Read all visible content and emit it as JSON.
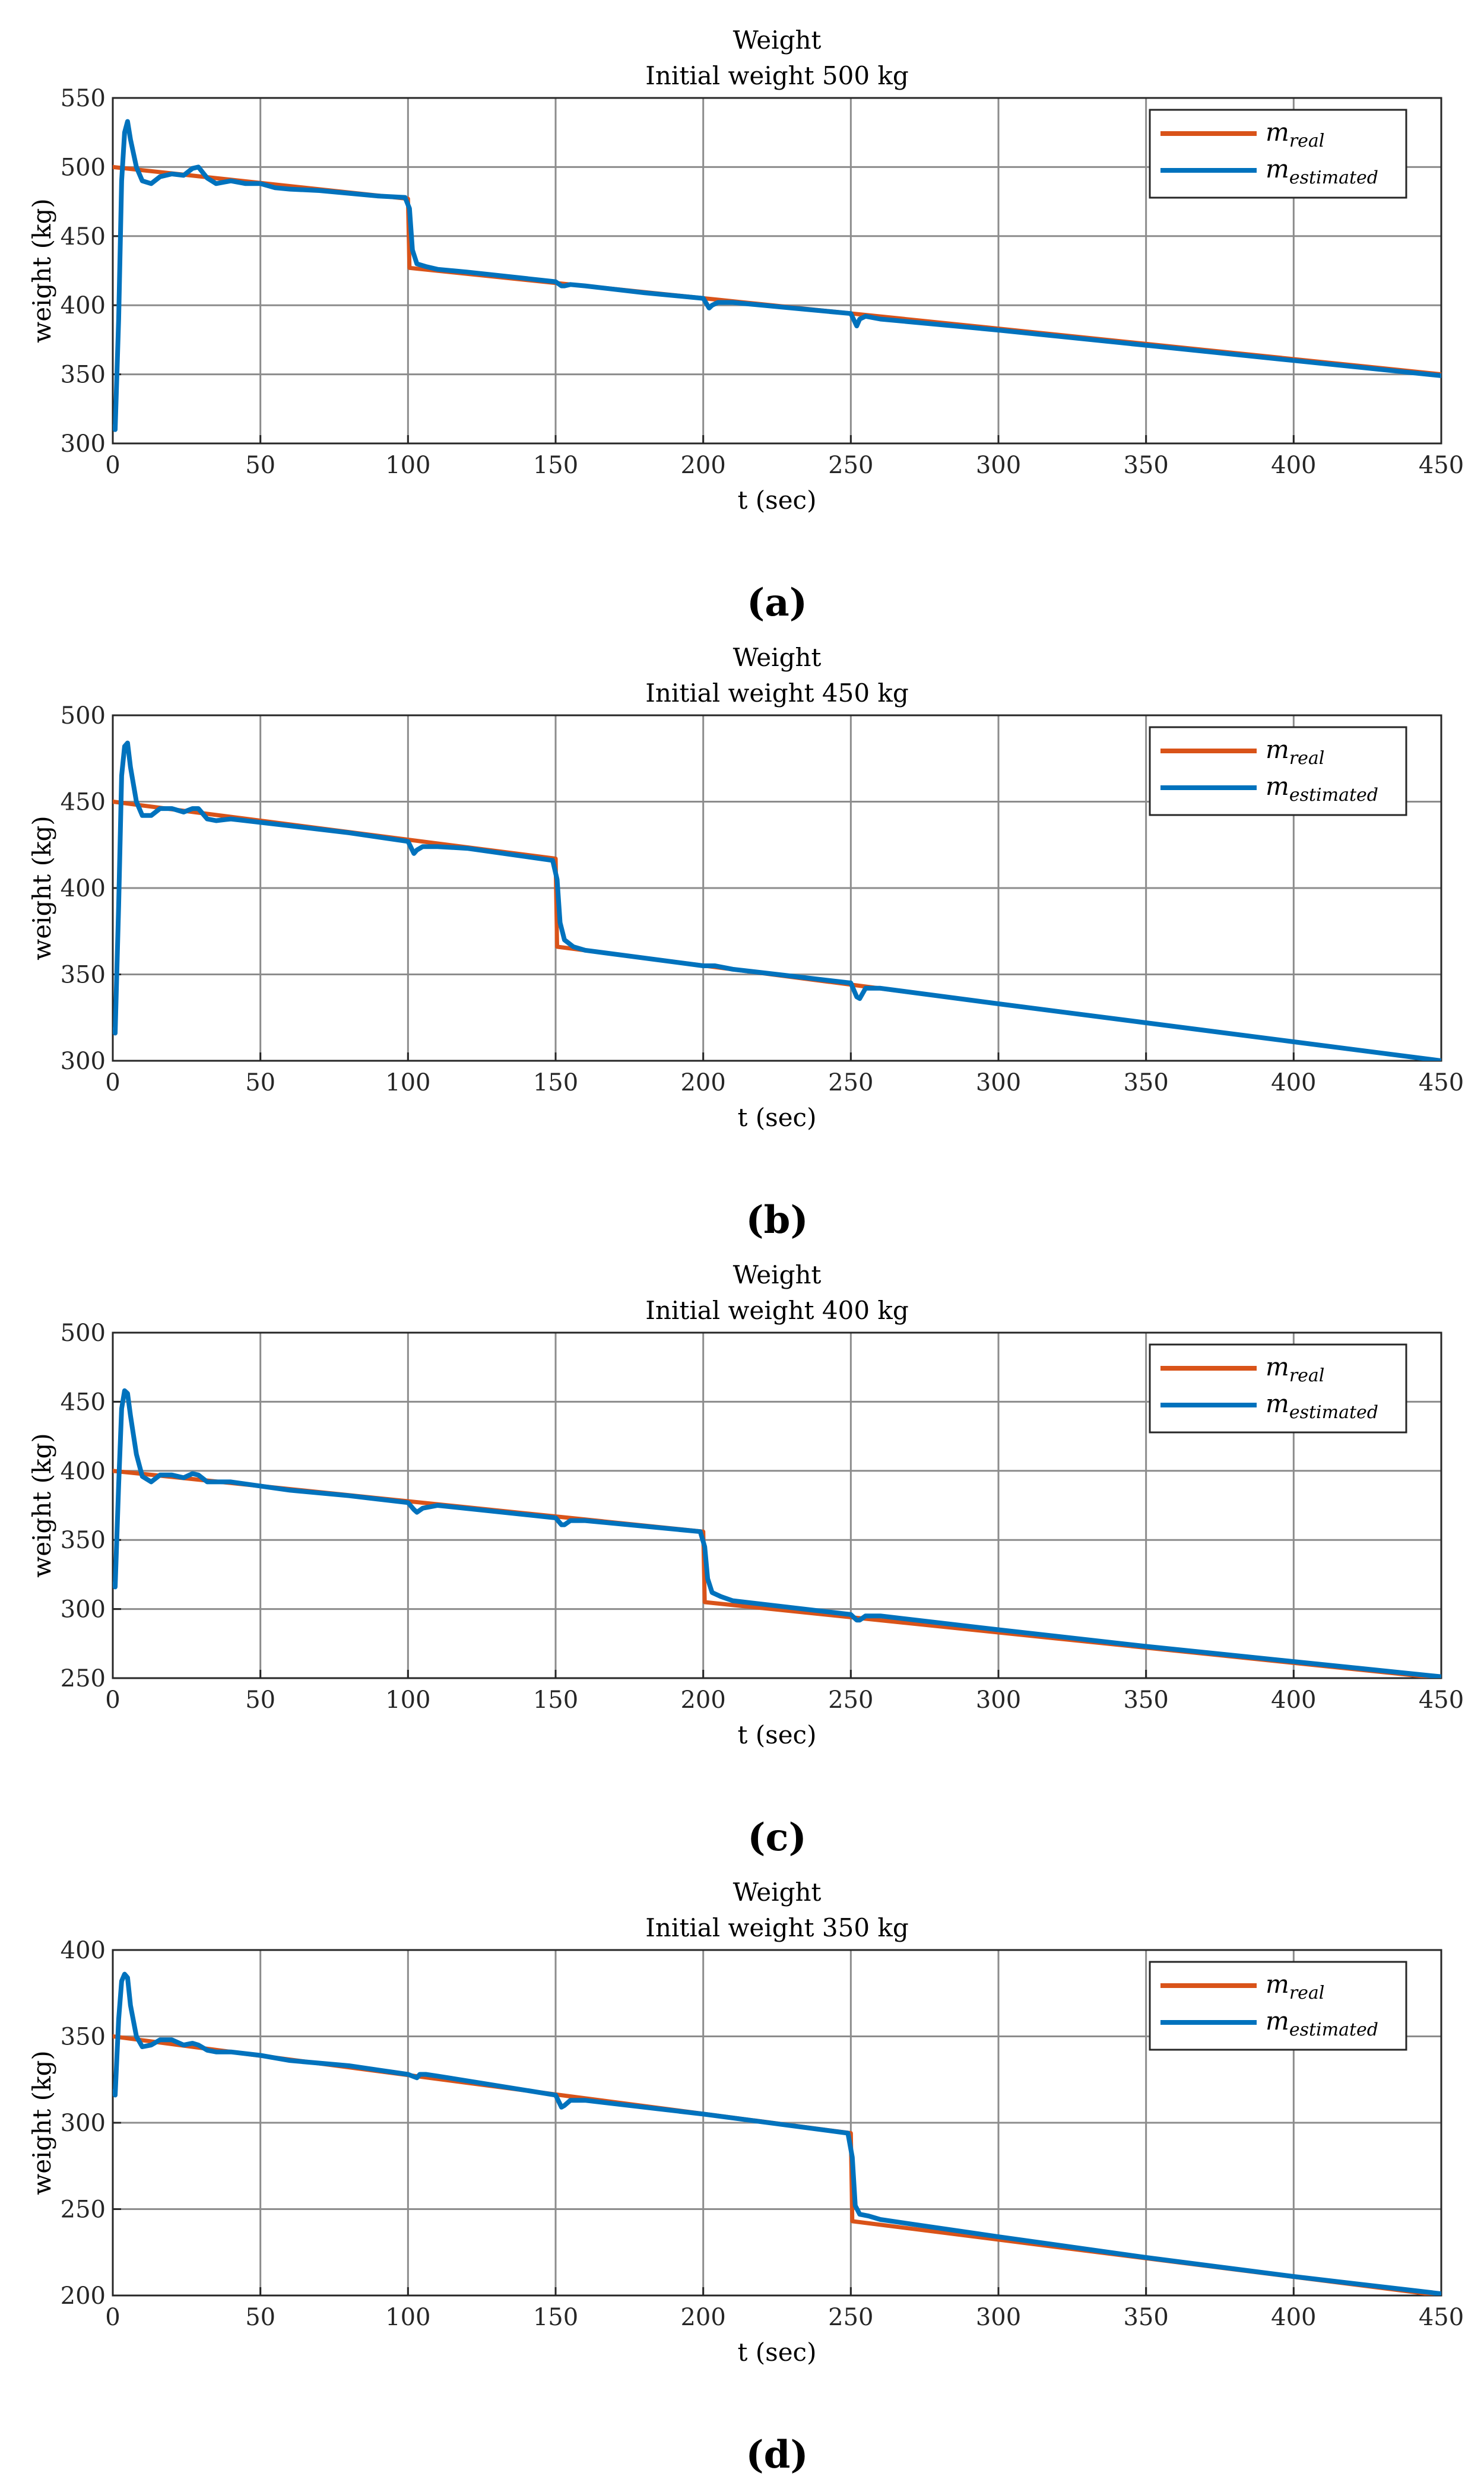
{
  "colors": {
    "real": "#D95319",
    "estimated": "#0072BD",
    "grid": "#8c8c8c",
    "axis": "#262626"
  },
  "legend_labels": {
    "real_main": "m",
    "real_sub": "real",
    "est_main": "m",
    "est_sub": "estimated"
  },
  "chart_data": [
    {
      "type": "line",
      "panel_label": "(a)",
      "title": "Weight",
      "subtitle": "Initial weight 500 kg",
      "xlabel": "t (sec)",
      "ylabel": "weight (kg)",
      "xlim": [
        0,
        450
      ],
      "ylim": [
        300,
        550
      ],
      "xticks": [
        0,
        50,
        100,
        150,
        200,
        250,
        300,
        350,
        400,
        450
      ],
      "yticks": [
        300,
        350,
        400,
        450,
        500,
        550
      ],
      "grid": true,
      "legend_position": "top-right",
      "series": [
        {
          "name": "m_real",
          "x": [
            0,
            100,
            100.5,
            450
          ],
          "values": [
            500,
            477,
            427,
            350
          ]
        },
        {
          "name": "m_estimated",
          "x": [
            0,
            0.8,
            2,
            3,
            4,
            5,
            6,
            8,
            10,
            13,
            16,
            20,
            24,
            27,
            29,
            32,
            35,
            40,
            45,
            50,
            55,
            60,
            70,
            80,
            90,
            99,
            100.5,
            101.5,
            103,
            106,
            110,
            120,
            150,
            152,
            153,
            155,
            160,
            180,
            200,
            202,
            203,
            205,
            210,
            230,
            250,
            252,
            253,
            255,
            260,
            300,
            350,
            400,
            450
          ],
          "values": [
            312,
            310,
            390,
            490,
            525,
            533,
            520,
            500,
            490,
            488,
            493,
            495,
            494,
            499,
            500,
            492,
            488,
            490,
            488,
            488,
            485,
            484,
            483,
            481,
            479,
            478,
            470,
            440,
            430,
            428,
            426,
            424,
            417,
            414,
            414,
            415,
            414,
            409,
            405,
            398,
            400,
            402,
            402,
            398,
            394,
            385,
            390,
            392,
            390,
            382,
            371,
            360,
            349
          ]
        }
      ]
    },
    {
      "type": "line",
      "panel_label": "(b)",
      "title": "Weight",
      "subtitle": "Initial weight 450 kg",
      "xlabel": "t (sec)",
      "ylabel": "weight (kg)",
      "xlim": [
        0,
        450
      ],
      "ylim": [
        300,
        500
      ],
      "xticks": [
        0,
        50,
        100,
        150,
        200,
        250,
        300,
        350,
        400,
        450
      ],
      "yticks": [
        300,
        350,
        400,
        450,
        500
      ],
      "grid": true,
      "legend_position": "top-right",
      "series": [
        {
          "name": "m_real",
          "x": [
            0,
            150,
            150.5,
            450
          ],
          "values": [
            450,
            417,
            366,
            300
          ]
        },
        {
          "name": "m_estimated",
          "x": [
            0,
            0.8,
            2,
            3,
            4,
            5,
            6,
            8,
            10,
            13,
            16,
            20,
            24,
            27,
            29,
            32,
            35,
            40,
            50,
            60,
            80,
            100,
            102,
            103,
            105,
            110,
            120,
            149,
            150.5,
            151.5,
            153,
            156,
            160,
            200,
            204,
            210,
            250,
            252,
            253,
            255,
            260,
            300,
            350,
            400,
            450
          ],
          "values": [
            318,
            316,
            390,
            465,
            482,
            484,
            470,
            450,
            442,
            442,
            446,
            446,
            444,
            446,
            446,
            440,
            439,
            440,
            438,
            436,
            432,
            427,
            420,
            422,
            424,
            424,
            423,
            416,
            405,
            380,
            370,
            366,
            364,
            355,
            355,
            353,
            345,
            337,
            336,
            342,
            342,
            333,
            322,
            311,
            300
          ]
        }
      ]
    },
    {
      "type": "line",
      "panel_label": "(c)",
      "title": "Weight",
      "subtitle": "Initial weight 400 kg",
      "xlabel": "t (sec)",
      "ylabel": "weight (kg)",
      "xlim": [
        0,
        450
      ],
      "ylim": [
        250,
        500
      ],
      "xticks": [
        0,
        50,
        100,
        150,
        200,
        250,
        300,
        350,
        400,
        450
      ],
      "yticks": [
        250,
        300,
        350,
        400,
        450,
        500
      ],
      "grid": true,
      "legend_position": "top-right",
      "series": [
        {
          "name": "m_real",
          "x": [
            0,
            200,
            200.5,
            450
          ],
          "values": [
            400,
            356,
            305,
            250
          ]
        },
        {
          "name": "m_estimated",
          "x": [
            0,
            0.8,
            2,
            3,
            4,
            5,
            6,
            8,
            10,
            13,
            16,
            20,
            24,
            27,
            29,
            32,
            35,
            40,
            50,
            60,
            80,
            100,
            102,
            103,
            105,
            110,
            150,
            152,
            153,
            155,
            160,
            199,
            200.5,
            201.5,
            203,
            206,
            210,
            250,
            252,
            253,
            255,
            260,
            300,
            350,
            400,
            450
          ],
          "values": [
            318,
            316,
            390,
            445,
            458,
            456,
            440,
            412,
            396,
            392,
            397,
            397,
            395,
            398,
            397,
            392,
            392,
            392,
            389,
            386,
            382,
            377,
            372,
            370,
            373,
            375,
            366,
            361,
            361,
            364,
            364,
            356,
            345,
            322,
            312,
            309,
            306,
            296,
            292,
            292,
            295,
            295,
            285,
            273,
            262,
            251
          ]
        }
      ]
    },
    {
      "type": "line",
      "panel_label": "(d)",
      "title": "Weight",
      "subtitle": "Initial weight 350 kg",
      "xlabel": "t (sec)",
      "ylabel": "weight (kg)",
      "xlim": [
        0,
        450
      ],
      "ylim": [
        200,
        400
      ],
      "xticks": [
        0,
        50,
        100,
        150,
        200,
        250,
        300,
        350,
        400,
        450
      ],
      "yticks": [
        200,
        250,
        300,
        350,
        400
      ],
      "grid": true,
      "legend_position": "top-right",
      "series": [
        {
          "name": "m_real",
          "x": [
            0,
            250,
            250.5,
            450
          ],
          "values": [
            350,
            294,
            243,
            200
          ]
        },
        {
          "name": "m_estimated",
          "x": [
            0,
            0.8,
            2,
            3,
            4,
            5,
            6,
            8,
            10,
            13,
            16,
            20,
            24,
            27,
            29,
            32,
            35,
            40,
            50,
            60,
            80,
            100,
            103,
            104,
            106,
            110,
            150,
            152,
            153,
            155,
            160,
            200,
            249,
            250.5,
            251.5,
            253,
            256,
            260,
            300,
            350,
            400,
            450
          ],
          "values": [
            318,
            316,
            360,
            382,
            386,
            384,
            368,
            350,
            344,
            345,
            348,
            348,
            345,
            346,
            345,
            342,
            341,
            341,
            339,
            336,
            333,
            328,
            326,
            328,
            328,
            327,
            316,
            309,
            310,
            313,
            313,
            305,
            294,
            280,
            252,
            247,
            246,
            244,
            234,
            222,
            211,
            201
          ]
        }
      ]
    }
  ]
}
